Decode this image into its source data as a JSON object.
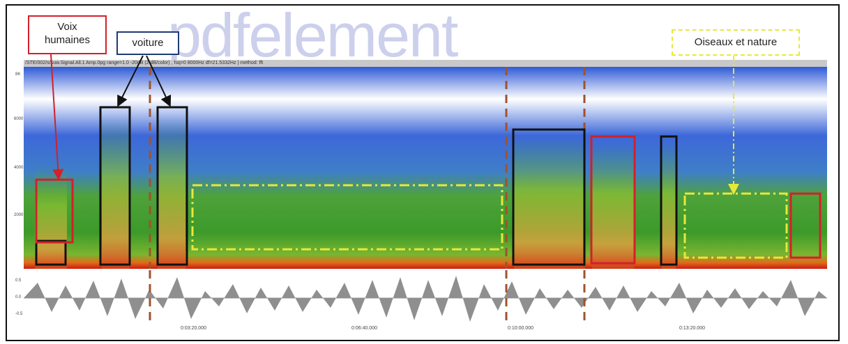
{
  "annotations": {
    "voices_label": "Voix humaines",
    "voices_line1": "Voix",
    "voices_line2": "humaines",
    "car_label": "voiture",
    "nature_label": "Oiseaux et nature"
  },
  "spectrogram": {
    "title": "/STE/002/s/suw.Signal.All.1  Amp.0pg  range=1.0  -20dB (2 dB/color) , fsq=0  8000Hz  df=21.5332Hz  | method: fft",
    "y_ticks": [
      "8K",
      "6000",
      "4000",
      "2000"
    ]
  },
  "waveform": {
    "y_ticks": [
      "0.5",
      "0.0",
      "-0.5"
    ]
  },
  "time_axis": {
    "ticks": [
      "0:03:20.000",
      "0:06:40.000",
      "0:10:00.000",
      "0:13:20.000"
    ]
  },
  "watermark": "pdfelement",
  "colors": {
    "voice_box": "#d3202a",
    "car_box": "#111111",
    "nature_box": "#e8e83a",
    "separator": "#a0522d"
  }
}
